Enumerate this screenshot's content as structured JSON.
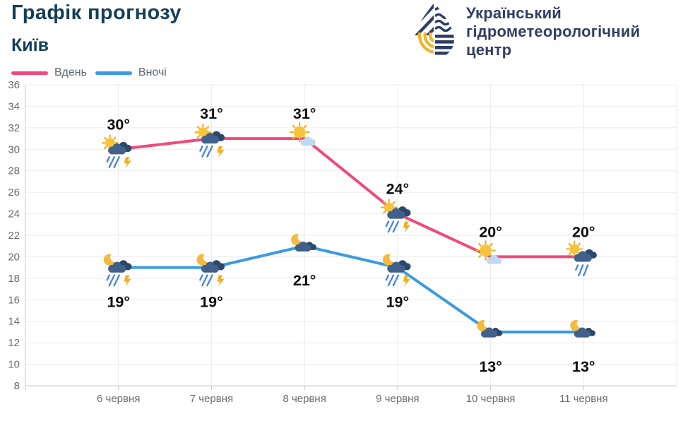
{
  "header": {
    "title": "Графік прогнозу",
    "city": "Київ",
    "org_lines": [
      "Український",
      "гідрометеорологічний",
      "центр"
    ]
  },
  "legend": [
    {
      "label": "Вдень",
      "color": "#f1497b"
    },
    {
      "label": "Вночі",
      "color": "#3a9be2"
    }
  ],
  "colors": {
    "title_text": "#153f58",
    "org_text": "#323e62",
    "axis_text": "#6b6b6b",
    "grid": "#ebebeb",
    "axis_border": "#c8c8c8",
    "day_line": "#f1497b",
    "night_line": "#3a9be2",
    "sun": "#f6c33c",
    "moon": "#f2bb3e",
    "cloud_dark": "#41618c",
    "cloud_darker": "#2c4868",
    "cloud_light": "#bed9f3",
    "rain": "#4b86d8",
    "lightning": "#f2b01e"
  },
  "chart_data": {
    "type": "line",
    "x": [
      "6 червня",
      "7 червня",
      "8 червня",
      "9 червня",
      "10 червня",
      "11 червня"
    ],
    "ylim": [
      8,
      36
    ],
    "ytick_step": 2,
    "grid": true,
    "legend_position": "top-left",
    "series": [
      {
        "name": "Вдень",
        "color": "#f1497b",
        "values": [
          30,
          31,
          31,
          24,
          20,
          20
        ],
        "labels": [
          "30°",
          "31°",
          "31°",
          "24°",
          "20°",
          "20°"
        ],
        "label_position": "above",
        "icons": [
          "thunder-day",
          "thunder-day",
          "partly-day",
          "thunder-day",
          "partly-day",
          "rain-day"
        ]
      },
      {
        "name": "Вночі",
        "color": "#3a9be2",
        "values": [
          19,
          19,
          21,
          19,
          13,
          13
        ],
        "labels": [
          "19°",
          "19°",
          "21°",
          "19°",
          "13°",
          "13°"
        ],
        "label_position": "below",
        "icons": [
          "thunder-night",
          "thunder-night",
          "cloud-night",
          "thunder-night",
          "cloud-night",
          "cloud-night"
        ]
      }
    ]
  }
}
